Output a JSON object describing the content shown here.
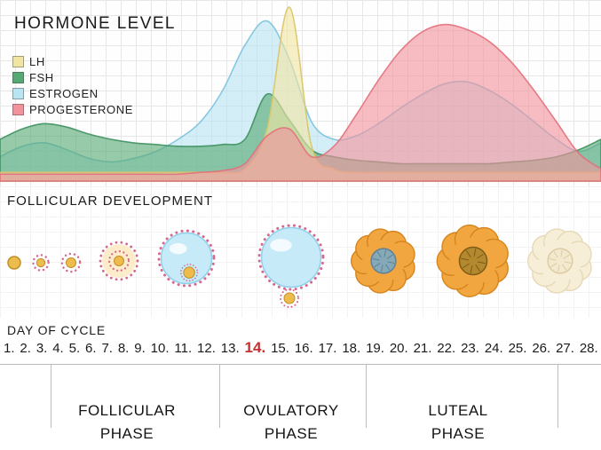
{
  "hormone_chart": {
    "title": "HORMONE LEVEL",
    "legend": [
      {
        "label": "LH",
        "color": "#f1e5a3"
      },
      {
        "label": "FSH",
        "color": "#57a973"
      },
      {
        "label": "ESTROGEN",
        "color": "#b9e4f2"
      },
      {
        "label": "PROGESTERONE",
        "color": "#f2939c"
      }
    ]
  },
  "chart_data": {
    "type": "area",
    "title": "HORMONE LEVEL",
    "xlabel": "DAY OF CYCLE",
    "ylabel": "",
    "x": [
      1,
      2,
      3,
      4,
      5,
      6,
      7,
      8,
      9,
      10,
      11,
      12,
      13,
      14,
      15,
      16,
      17,
      18,
      19,
      20,
      21,
      22,
      23,
      24,
      25,
      26,
      27,
      28
    ],
    "ylim": [
      0,
      100
    ],
    "grid": true,
    "legend_position": "top-left",
    "series": [
      {
        "name": "ESTROGEN",
        "color": "#b9e4f2",
        "stroke": "#7cc3dd",
        "values": [
          14,
          20,
          22,
          18,
          13,
          11,
          13,
          17,
          24,
          34,
          52,
          78,
          92,
          70,
          34,
          24,
          26,
          33,
          42,
          50,
          56,
          57,
          52,
          44,
          34,
          24,
          17,
          22
        ]
      },
      {
        "name": "FSH",
        "color": "#57a973",
        "stroke": "#3f9160",
        "values": [
          24,
          30,
          33,
          31,
          27,
          24,
          22,
          21,
          20,
          20,
          21,
          24,
          50,
          35,
          18,
          14,
          12,
          11,
          10,
          10,
          10,
          10,
          10,
          11,
          12,
          14,
          18,
          24
        ]
      },
      {
        "name": "LH",
        "color": "#f1e5a3",
        "stroke": "#d9c469",
        "values": [
          5,
          5,
          5,
          5,
          5,
          5,
          5,
          5,
          5,
          5,
          5,
          7,
          30,
          100,
          20,
          7,
          5,
          5,
          5,
          5,
          5,
          5,
          5,
          5,
          5,
          5,
          5,
          5
        ]
      },
      {
        "name": "PROGESTERONE",
        "color": "#f2939c",
        "stroke": "#e2707b",
        "values": [
          4,
          4,
          4,
          4,
          4,
          4,
          4,
          4,
          4,
          5,
          6,
          10,
          26,
          30,
          14,
          20,
          38,
          58,
          75,
          86,
          90,
          87,
          80,
          68,
          52,
          34,
          16,
          7
        ]
      }
    ]
  },
  "follicular_development": {
    "title": "FOLLICULAR DEVELOPMENT",
    "stages": [
      {
        "name": "primordial-follicle-icon"
      },
      {
        "name": "primary-follicle-icon"
      },
      {
        "name": "secondary-follicle-icon"
      },
      {
        "name": "early-tertiary-follicle-icon"
      },
      {
        "name": "antral-follicle-icon"
      },
      {
        "name": "ovulation-mature-follicle-icon"
      },
      {
        "name": "early-corpus-luteum-icon"
      },
      {
        "name": "corpus-luteum-icon"
      },
      {
        "name": "corpus-albicans-icon"
      }
    ]
  },
  "day_axis": {
    "title": "DAY OF CYCLE",
    "days": [
      "1.",
      "2.",
      "3.",
      "4.",
      "5.",
      "6.",
      "7.",
      "8.",
      "9.",
      "10.",
      "11.",
      "12.",
      "13.",
      "14.",
      "15.",
      "16.",
      "17.",
      "18.",
      "19.",
      "20.",
      "21.",
      "22.",
      "23.",
      "24.",
      "25.",
      "26.",
      "27.",
      "28."
    ],
    "highlighted_day": "14.",
    "highlight_color": "#c62f2f"
  },
  "phases": [
    {
      "label": "FOLLICULAR PHASE"
    },
    {
      "label": "OVULATORY PHASE"
    },
    {
      "label": "LUTEAL PHASE"
    }
  ]
}
